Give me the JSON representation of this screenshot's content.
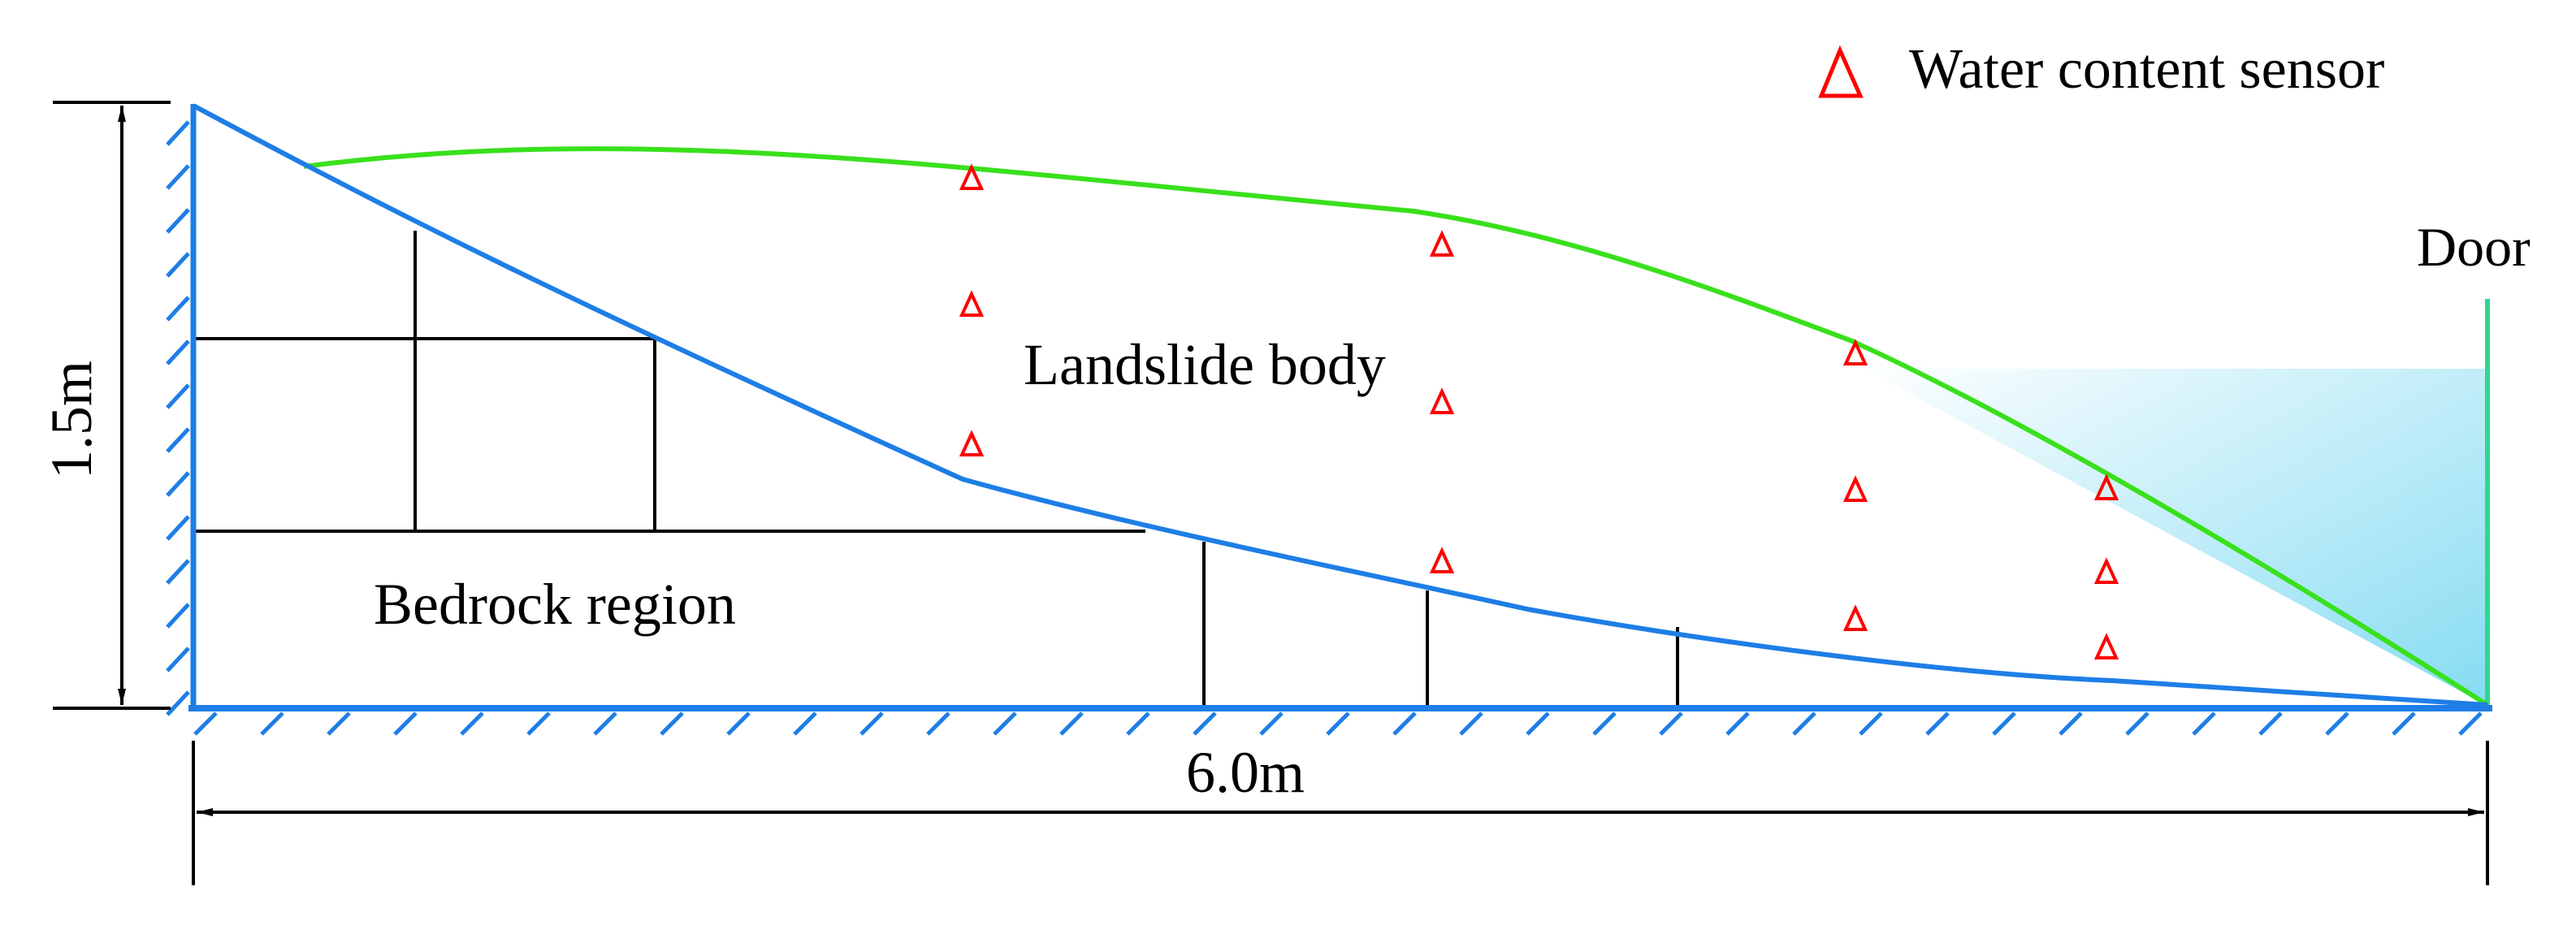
{
  "labels": {
    "legend": "Water content sensor",
    "door": "Door",
    "landslide": "Landslide body",
    "bedrock": "Bedrock region",
    "height_dim": "1.5m",
    "width_dim": "6.0m"
  },
  "colors": {
    "slope_line": "#1e7ee6",
    "surface_line": "#39e01c",
    "sensor": "#ff0000",
    "water_light": "#ffffff",
    "water_dark": "#86dcf2",
    "door_line": "#2fd68e",
    "line": "#000000"
  }
}
